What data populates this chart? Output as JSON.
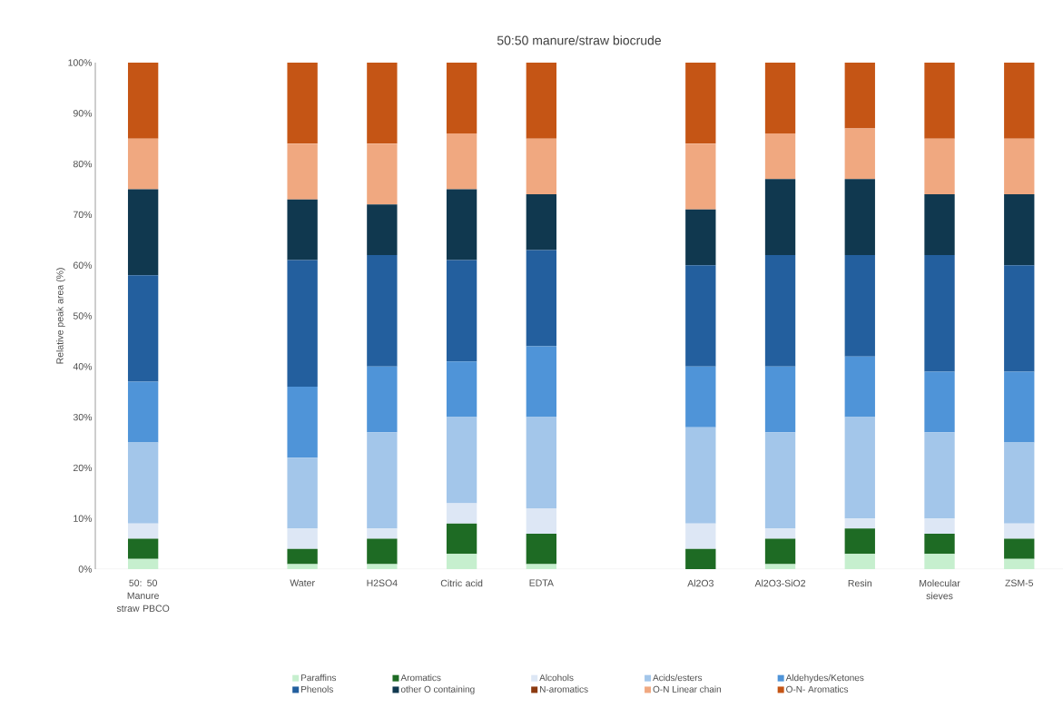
{
  "chart_data": {
    "type": "bar",
    "stacked": true,
    "title": "50:50 manure/straw biocrude",
    "ylabel": "Relative peak area (%)",
    "categories": [
      "50: 50 Manure straw PBCO",
      null,
      "Water",
      "H2SO4",
      "Citric acid",
      "EDTA",
      null,
      "Al2O3",
      "Al2O3-SiO2",
      "Resin",
      "Molecular sieves",
      "ZSM-5"
    ],
    "ylim": [
      0,
      100
    ],
    "yticks": [
      {
        "value": 0,
        "label": "0%"
      },
      {
        "value": 10,
        "label": "10%"
      },
      {
        "value": 20,
        "label": "20%"
      },
      {
        "value": 30,
        "label": "30%"
      },
      {
        "value": 40,
        "label": "40%"
      },
      {
        "value": 50,
        "label": "50%"
      },
      {
        "value": 60,
        "label": "60%"
      },
      {
        "value": 70,
        "label": "70%"
      },
      {
        "value": 80,
        "label": "80%"
      },
      {
        "value": 90,
        "label": "90%"
      },
      {
        "value": 100,
        "label": "100%"
      }
    ],
    "grid": false,
    "legend": "bottom",
    "series": [
      {
        "name": "Paraffins",
        "color": "#c6efce",
        "values": [
          2,
          null,
          1,
          1,
          3,
          1,
          null,
          0,
          1,
          3,
          3,
          2
        ]
      },
      {
        "name": "Aromatics",
        "color": "#1e6b24",
        "values": [
          4,
          null,
          3,
          5,
          6,
          6,
          null,
          4,
          5,
          5,
          4,
          4
        ]
      },
      {
        "name": "Alcohols",
        "color": "#dde7f5",
        "values": [
          3,
          null,
          4,
          2,
          4,
          5,
          null,
          5,
          2,
          2,
          3,
          3
        ]
      },
      {
        "name": "Acids/esters",
        "color": "#a3c6ea",
        "values": [
          16,
          null,
          14,
          19,
          17,
          18,
          null,
          19,
          19,
          20,
          17,
          16
        ]
      },
      {
        "name": "Aldehydes/Ketones",
        "color": "#4f94d8",
        "values": [
          12,
          null,
          14,
          13,
          11,
          14,
          null,
          12,
          13,
          12,
          12,
          14
        ]
      },
      {
        "name": "Phenols",
        "color": "#235f9e",
        "values": [
          21,
          null,
          25,
          22,
          20,
          19,
          null,
          20,
          22,
          20,
          23,
          21
        ]
      },
      {
        "name": "other O containing",
        "color": "#10384f",
        "values": [
          17,
          null,
          12,
          10,
          14,
          11,
          null,
          11,
          15,
          15,
          12,
          14
        ]
      },
      {
        "name": "N-aromatics",
        "color": "#8c3a10",
        "values": [
          0,
          null,
          0,
          0,
          0,
          0,
          null,
          0,
          0,
          0,
          0,
          0
        ]
      },
      {
        "name": "O-N Linear chain",
        "color": "#f0a880",
        "values": [
          10,
          null,
          11,
          12,
          11,
          11,
          null,
          13,
          9,
          10,
          11,
          11
        ]
      },
      {
        "name": "O-N- Aromatics",
        "color": "#c55515",
        "values": [
          15,
          null,
          16,
          16,
          14,
          15,
          null,
          16,
          14,
          13,
          15,
          15
        ]
      }
    ]
  }
}
